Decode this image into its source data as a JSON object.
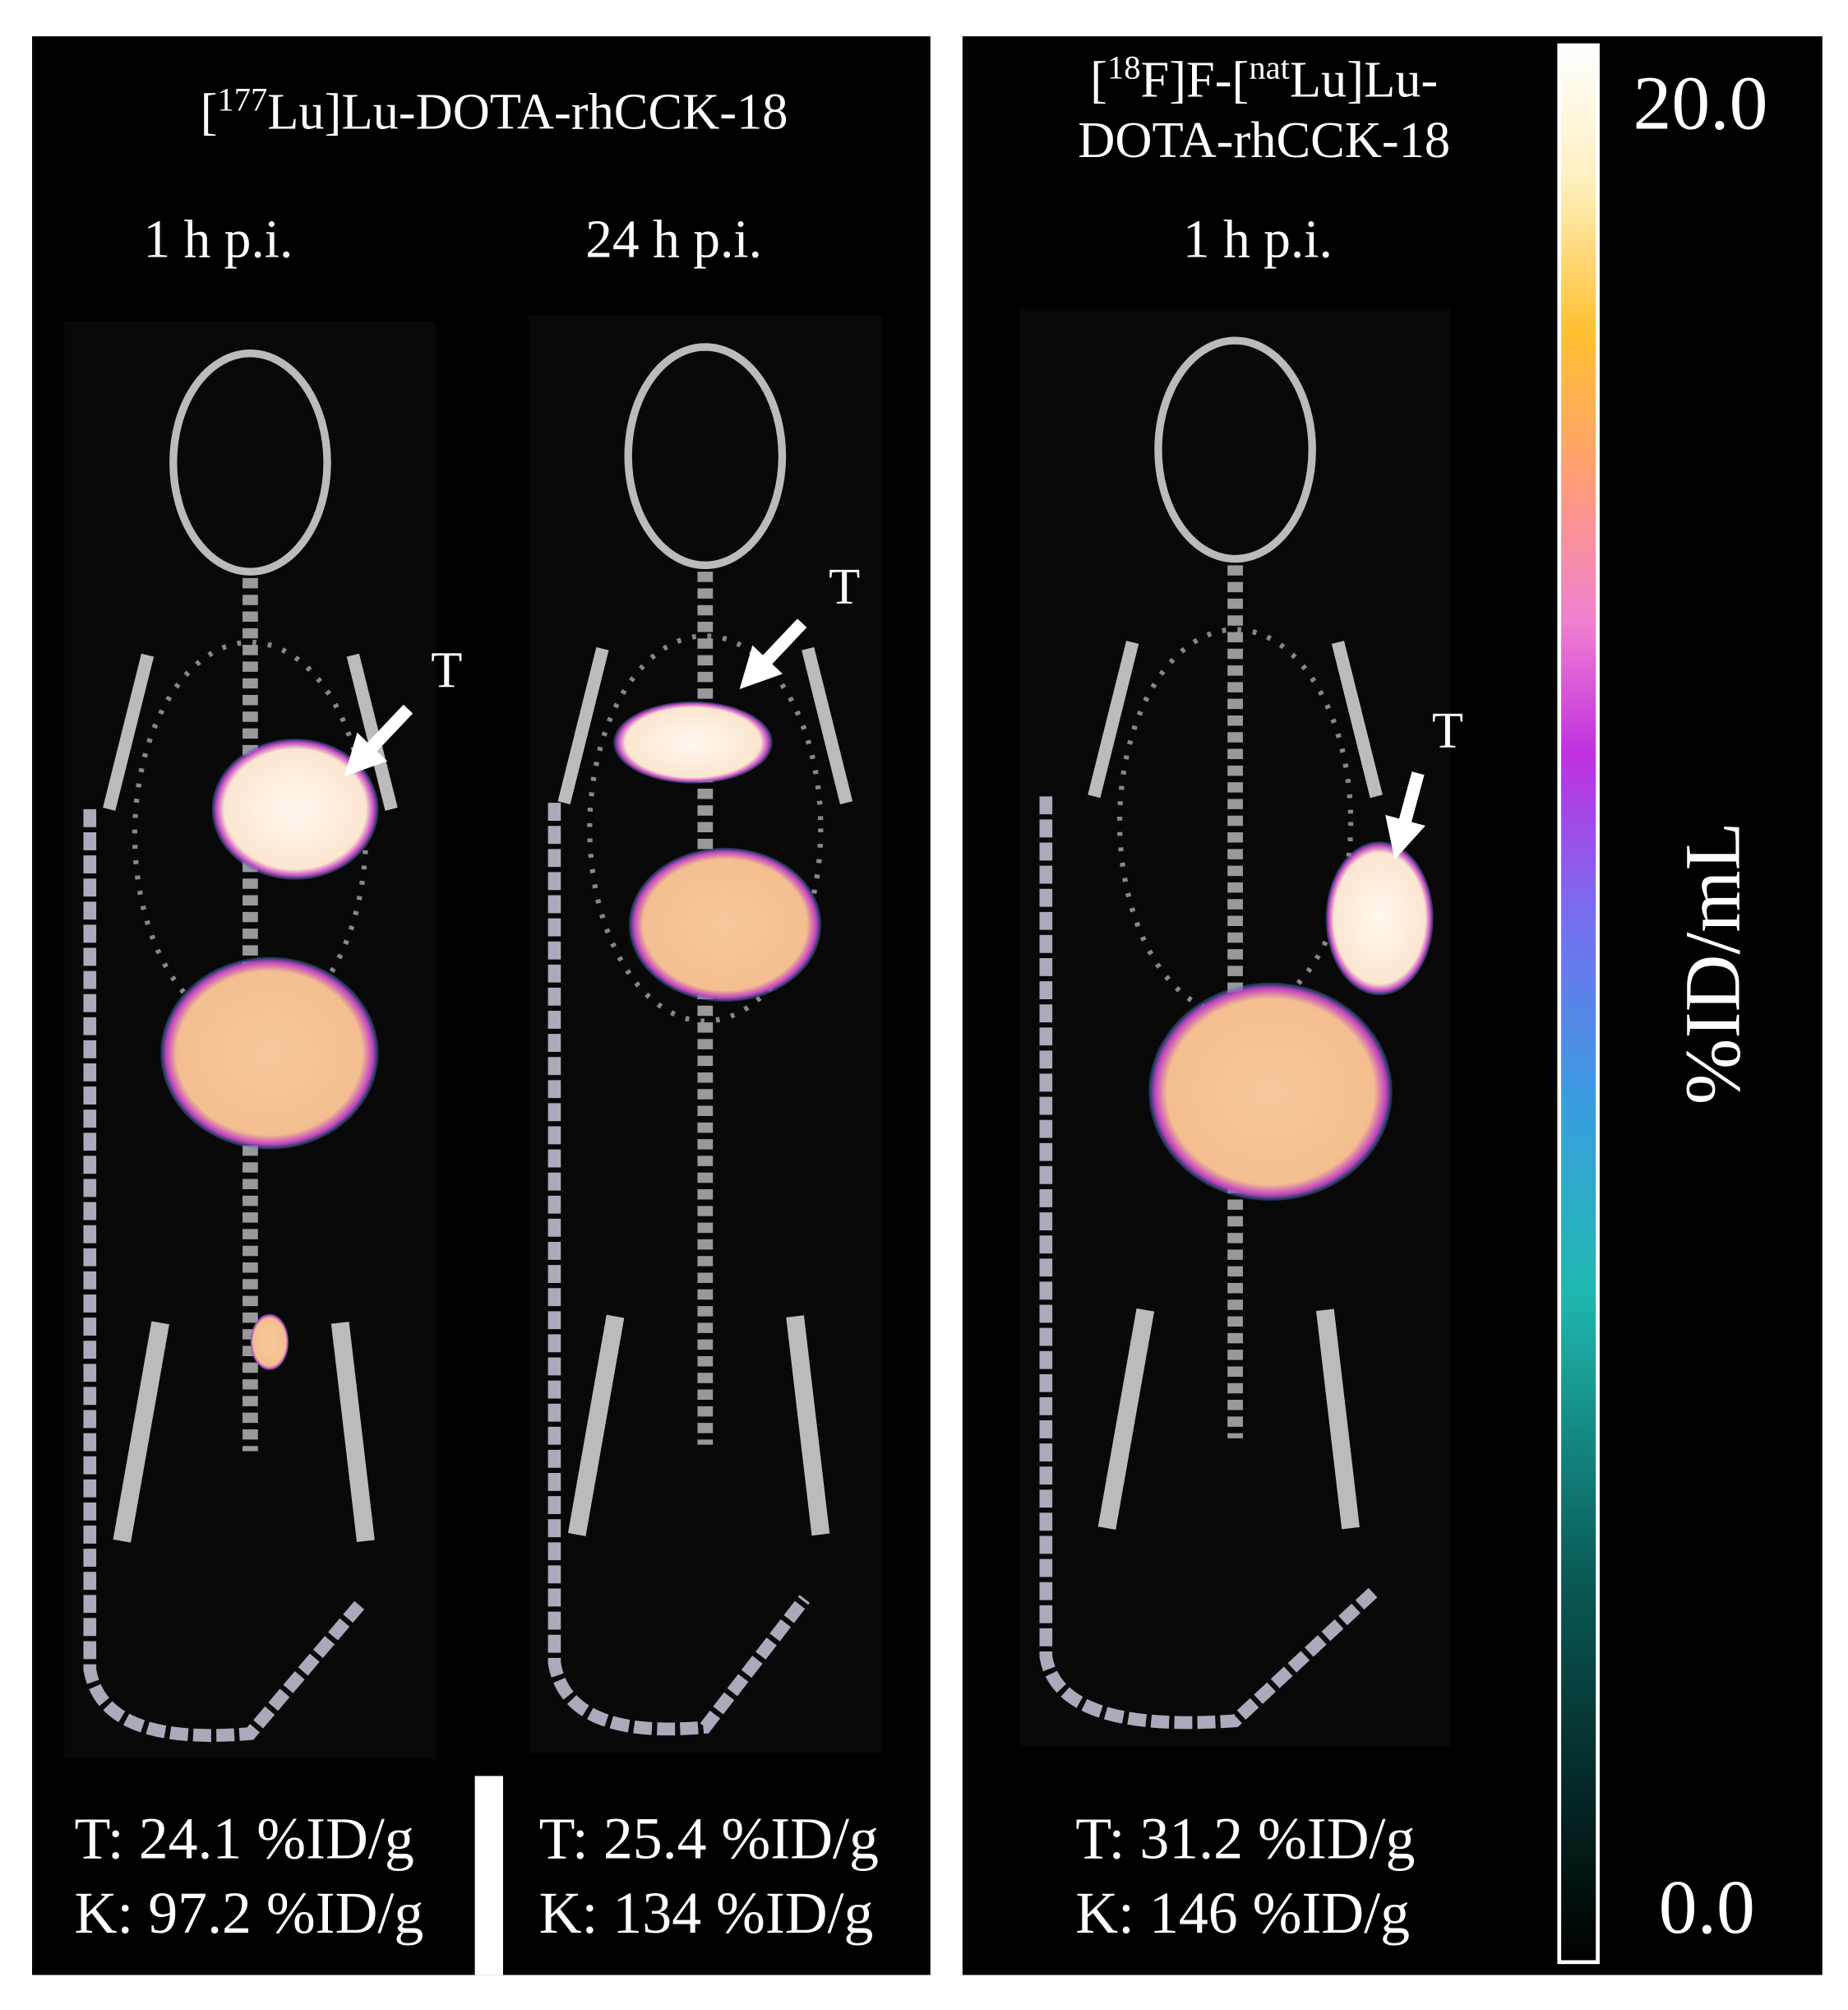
{
  "panels": [
    {
      "title_lines": [
        [
          {
            "text": "[",
            "sup": false
          },
          {
            "text": "177",
            "sup": true
          },
          {
            "text": "Lu]Lu-DOTA-rhCCK-18",
            "sup": false
          }
        ]
      ],
      "images": [
        {
          "time": "1 h p.i.",
          "marker": "T",
          "stats": [
            "T: 24.1 %ID/g",
            "K: 97.2 %ID/g"
          ]
        },
        {
          "time": "24 h p.i.",
          "marker": "T",
          "stats": [
            "T: 25.4 %ID/g",
            "K: 134 %ID/g"
          ]
        }
      ]
    },
    {
      "title_lines": [
        [
          {
            "text": "[",
            "sup": false
          },
          {
            "text": "18",
            "sup": true
          },
          {
            "text": "F]F-[",
            "sup": false
          },
          {
            "text": "nat",
            "sup": true
          },
          {
            "text": "Lu]Lu-",
            "sup": false
          }
        ],
        [
          {
            "text": "DOTA-rhCCK-18",
            "sup": false
          }
        ]
      ],
      "images": [
        {
          "time": "1 h p.i.",
          "marker": "T",
          "stats": [
            "T: 31.2 %ID/g",
            "K: 146 %ID/g"
          ]
        }
      ]
    }
  ],
  "colorbar": {
    "max": "20.0",
    "min": "0.0",
    "label": "%ID/mL"
  }
}
